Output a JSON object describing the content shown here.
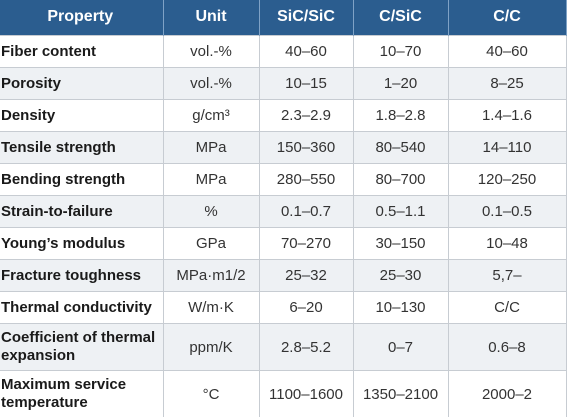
{
  "table": {
    "headers": [
      "Property",
      "Unit",
      "SiC/SiC",
      "C/SiC",
      "C/C"
    ],
    "rows": [
      {
        "property": "Fiber content",
        "unit": "vol.-%",
        "sic_sic": "40–60",
        "c_sic": "10–70",
        "c_c": "40–60"
      },
      {
        "property": "Porosity",
        "unit": "vol.-%",
        "sic_sic": "10–15",
        "c_sic": "1–20",
        "c_c": "8–25"
      },
      {
        "property": "Density",
        "unit": "g/cm³",
        "sic_sic": "2.3–2.9",
        "c_sic": "1.8–2.8",
        "c_c": "1.4–1.6"
      },
      {
        "property": "Tensile strength",
        "unit": "MPa",
        "sic_sic": "150–360",
        "c_sic": "80–540",
        "c_c": "14–110"
      },
      {
        "property": "Bending strength",
        "unit": "MPa",
        "sic_sic": "280–550",
        "c_sic": "80–700",
        "c_c": "120–250"
      },
      {
        "property": "Strain-to-failure",
        "unit": "%",
        "sic_sic": "0.1–0.7",
        "c_sic": "0.5–1.1",
        "c_c": "0.1–0.5"
      },
      {
        "property": "Young’s modulus",
        "unit": "GPa",
        "sic_sic": "70–270",
        "c_sic": "30–150",
        "c_c": "10–48"
      },
      {
        "property": "Fracture toughness",
        "unit": "MPa·m1/2",
        "sic_sic": "25–32",
        "c_sic": "25–30",
        "c_c": "5,7–"
      },
      {
        "property": "Thermal conductivity",
        "unit": "W/m·K",
        "sic_sic": "6–20",
        "c_sic": "10–130",
        "c_c": "C/C"
      },
      {
        "property": "Coefficient of thermal expansion",
        "unit": "ppm/K",
        "sic_sic": "2.8–5.2",
        "c_sic": "0–7",
        "c_c": "0.6–8"
      },
      {
        "property": "Maximum service temperature",
        "unit": "°C",
        "sic_sic": "1100–1600",
        "c_sic": "1350–2100",
        "c_c": "2000–2"
      }
    ]
  }
}
